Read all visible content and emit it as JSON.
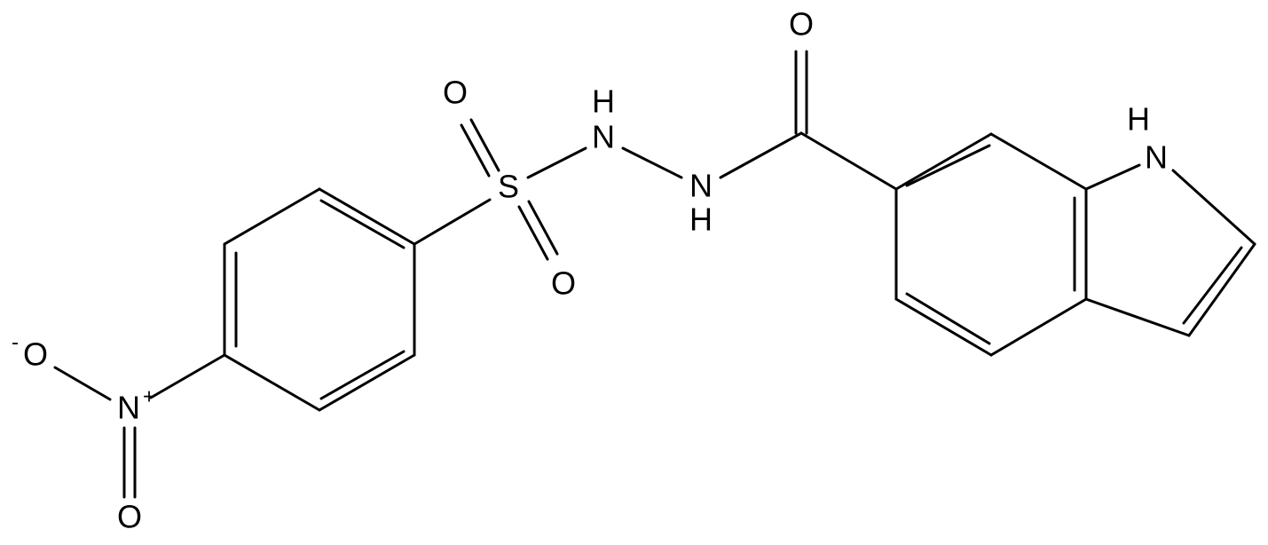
{
  "atoms": [
    {
      "label": "O"
    },
    {
      "label": "N",
      "h": "H"
    },
    {
      "label": "N",
      "h": "H"
    },
    {
      "label": "S"
    },
    {
      "label": "O"
    },
    {
      "label": "O"
    },
    {
      "label": "N",
      "charge": "+"
    },
    {
      "label": "O",
      "charge": "-"
    },
    {
      "label": "O"
    },
    {
      "label": "N",
      "h": "H"
    }
  ]
}
